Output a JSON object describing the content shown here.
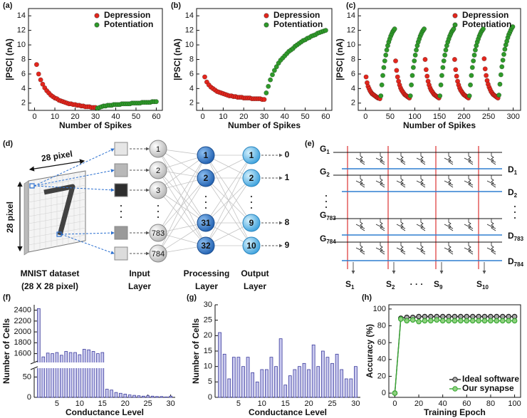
{
  "chart_data": [
    {
      "type": "scatter",
      "label": "(a)",
      "xlabel": "Number of Spikes",
      "ylabel": "|PSC| (nA)",
      "xlim": [
        -3,
        63
      ],
      "xticks": [
        0,
        10,
        20,
        30,
        40,
        50,
        60
      ],
      "ylim": [
        1,
        15
      ],
      "yticks": [
        2,
        4,
        6,
        8,
        10,
        12,
        14
      ],
      "legend": "upper right",
      "series": [
        {
          "name": "Depression",
          "color": "#e3261d",
          "x": [
            1,
            2,
            3,
            4,
            5,
            6,
            7,
            8,
            9,
            10,
            11,
            12,
            13,
            14,
            15,
            16,
            17,
            18,
            19,
            20,
            21,
            22,
            23,
            24,
            25,
            26,
            27,
            28,
            29,
            30
          ],
          "values": [
            7.3,
            6.0,
            5.2,
            4.6,
            4.1,
            3.7,
            3.4,
            3.1,
            2.9,
            2.7,
            2.6,
            2.4,
            2.3,
            2.2,
            2.1,
            2.0,
            1.9,
            1.9,
            1.8,
            1.8,
            1.7,
            1.7,
            1.6,
            1.6,
            1.5,
            1.5,
            1.5,
            1.4,
            1.4,
            1.4
          ]
        },
        {
          "name": "Potentiation",
          "color": "#2f9a2a",
          "x": [
            31,
            32,
            33,
            34,
            35,
            36,
            37,
            38,
            39,
            40,
            41,
            42,
            43,
            44,
            45,
            46,
            47,
            48,
            49,
            50,
            51,
            52,
            53,
            54,
            55,
            56,
            57,
            58,
            59,
            60
          ],
          "values": [
            1.3,
            1.4,
            1.5,
            1.6,
            1.6,
            1.7,
            1.7,
            1.7,
            1.8,
            1.8,
            1.8,
            1.8,
            1.9,
            1.9,
            1.9,
            1.9,
            1.9,
            2.0,
            2.0,
            2.0,
            2.0,
            2.0,
            2.1,
            2.1,
            2.1,
            2.1,
            2.1,
            2.2,
            2.2,
            2.2
          ]
        }
      ]
    },
    {
      "type": "scatter",
      "label": "(b)",
      "xlabel": "Number of Spikes",
      "ylabel": "|PSC| (nA)",
      "xlim": [
        -3,
        63
      ],
      "xticks": [
        0,
        10,
        20,
        30,
        40,
        50,
        60
      ],
      "ylim": [
        1,
        15
      ],
      "yticks": [
        2,
        4,
        6,
        8,
        10,
        12,
        14
      ],
      "legend": "upper right",
      "series": [
        {
          "name": "Depression",
          "color": "#e3261d",
          "x": [
            1,
            2,
            3,
            4,
            5,
            6,
            7,
            8,
            9,
            10,
            11,
            12,
            13,
            14,
            15,
            16,
            17,
            18,
            19,
            20,
            21,
            22,
            23,
            24,
            25,
            26,
            27,
            28,
            29,
            30
          ],
          "values": [
            5.6,
            4.9,
            4.5,
            4.2,
            4.0,
            3.8,
            3.6,
            3.5,
            3.4,
            3.3,
            3.2,
            3.1,
            3.0,
            3.0,
            2.9,
            2.9,
            2.8,
            2.8,
            2.8,
            2.7,
            2.7,
            2.7,
            2.7,
            2.6,
            2.6,
            2.6,
            2.6,
            2.6,
            2.5,
            2.5
          ]
        },
        {
          "name": "Potentiation",
          "color": "#2f9a2a",
          "x": [
            31,
            32,
            33,
            34,
            35,
            36,
            37,
            38,
            39,
            40,
            41,
            42,
            43,
            44,
            45,
            46,
            47,
            48,
            49,
            50,
            51,
            52,
            53,
            54,
            55,
            56,
            57,
            58,
            59,
            60
          ],
          "values": [
            3.4,
            4.3,
            5.2,
            5.9,
            6.5,
            7.0,
            7.5,
            7.9,
            8.2,
            8.5,
            8.8,
            9.1,
            9.3,
            9.5,
            9.8,
            10.0,
            10.2,
            10.4,
            10.6,
            10.7,
            10.9,
            11.0,
            11.2,
            11.3,
            11.4,
            11.6,
            11.7,
            11.8,
            11.9,
            12.0
          ]
        }
      ]
    },
    {
      "type": "scatter",
      "label": "(c)",
      "xlabel": "Number of Spikes",
      "ylabel": "|PSC| (nA)",
      "xlim": [
        -15,
        315
      ],
      "xticks": [
        0,
        50,
        100,
        150,
        200,
        250,
        300
      ],
      "ylim": [
        1,
        15
      ],
      "yticks": [
        2,
        4,
        6,
        8,
        10,
        12,
        14
      ],
      "legend": "upper right",
      "series": [
        {
          "name": "Depression",
          "color": "#e3261d",
          "x": [
            1,
            3,
            5,
            7,
            9,
            11,
            13,
            15,
            17,
            19,
            21,
            23,
            25,
            27,
            29,
            61,
            63,
            65,
            67,
            69,
            71,
            73,
            75,
            77,
            79,
            81,
            83,
            85,
            87,
            89,
            121,
            123,
            125,
            127,
            129,
            131,
            133,
            135,
            137,
            139,
            141,
            143,
            145,
            147,
            149,
            181,
            183,
            185,
            187,
            189,
            191,
            193,
            195,
            197,
            199,
            201,
            203,
            205,
            207,
            209,
            241,
            243,
            245,
            247,
            249,
            251,
            253,
            255,
            257,
            259,
            261,
            263,
            265,
            267,
            269
          ],
          "values": [
            5.6,
            4.8,
            4.3,
            4.0,
            3.7,
            3.5,
            3.3,
            3.2,
            3.1,
            3.0,
            2.9,
            2.8,
            2.7,
            2.7,
            2.6,
            7.8,
            6.5,
            5.6,
            5.0,
            4.5,
            4.1,
            3.8,
            3.6,
            3.4,
            3.2,
            3.1,
            3.0,
            2.9,
            2.8,
            2.7,
            8.0,
            6.6,
            5.7,
            5.0,
            4.5,
            4.1,
            3.8,
            3.6,
            3.4,
            3.2,
            3.1,
            3.0,
            2.9,
            2.8,
            2.7,
            8.0,
            6.6,
            5.7,
            5.0,
            4.5,
            4.1,
            3.8,
            3.6,
            3.4,
            3.2,
            3.1,
            3.0,
            2.9,
            2.8,
            2.7,
            8.1,
            6.7,
            5.8,
            5.1,
            4.6,
            4.2,
            3.9,
            3.6,
            3.4,
            3.2,
            3.1,
            3.0,
            2.9,
            2.8,
            2.7
          ]
        },
        {
          "name": "Potentiation",
          "color": "#2f9a2a",
          "x": [
            31,
            33,
            35,
            37,
            39,
            41,
            43,
            45,
            47,
            49,
            51,
            53,
            55,
            57,
            59,
            91,
            93,
            95,
            97,
            99,
            101,
            103,
            105,
            107,
            109,
            111,
            113,
            115,
            117,
            119,
            151,
            153,
            155,
            157,
            159,
            161,
            163,
            165,
            167,
            169,
            171,
            173,
            175,
            177,
            179,
            211,
            213,
            215,
            217,
            219,
            221,
            223,
            225,
            227,
            229,
            231,
            233,
            235,
            237,
            239,
            271,
            273,
            275,
            277,
            279,
            281,
            283,
            285,
            287,
            289,
            291,
            293,
            295,
            297,
            299
          ],
          "values": [
            3.0,
            4.5,
            5.8,
            6.9,
            7.8,
            8.6,
            9.3,
            9.9,
            10.4,
            10.8,
            11.2,
            11.5,
            11.8,
            12.0,
            12.2,
            3.0,
            4.5,
            5.8,
            6.9,
            7.8,
            8.6,
            9.3,
            9.9,
            10.4,
            10.8,
            11.2,
            11.5,
            11.8,
            12.0,
            12.2,
            3.0,
            4.5,
            5.8,
            6.9,
            7.8,
            8.6,
            9.3,
            9.9,
            10.4,
            10.8,
            11.2,
            11.5,
            11.8,
            12.0,
            12.2,
            3.0,
            4.5,
            5.8,
            6.9,
            7.8,
            8.6,
            9.3,
            9.9,
            10.4,
            10.8,
            11.2,
            11.5,
            11.8,
            12.0,
            12.2,
            3.1,
            4.6,
            5.9,
            7.0,
            7.9,
            8.7,
            9.4,
            10.0,
            10.5,
            11.0,
            11.4,
            11.7,
            12.0,
            12.3,
            12.5
          ]
        }
      ]
    },
    {
      "type": "bar",
      "label": "(f)",
      "xlabel": "Conductance Level",
      "ylabel": "Number of Cells",
      "color": "#c9c9ef",
      "x": [
        1,
        2,
        3,
        4,
        5,
        6,
        7,
        8,
        9,
        10,
        11,
        12,
        13,
        14,
        15,
        16,
        17,
        18,
        19,
        20,
        21,
        22,
        23,
        24,
        25,
        26,
        27,
        28,
        29,
        30
      ],
      "values": [
        2430,
        1540,
        1610,
        1600,
        1620,
        1570,
        1640,
        1620,
        1620,
        1580,
        1680,
        1670,
        1640,
        1600,
        1620,
        20,
        18,
        12,
        10,
        8,
        6,
        5,
        4,
        3,
        4,
        3,
        2,
        2,
        1,
        3
      ],
      "xlim": [
        0,
        31
      ],
      "xticks": [
        5,
        10,
        15,
        20,
        25,
        30
      ],
      "ylim": [
        0,
        2500
      ],
      "ybreak": [
        70,
        1450
      ],
      "yticks": [
        0,
        50,
        1600,
        1800,
        2000,
        2200,
        2400
      ]
    },
    {
      "type": "bar",
      "label": "(g)",
      "xlabel": "Conductance Level",
      "ylabel": "Number of Cells",
      "color": "#c9c9ef",
      "x": [
        1,
        2,
        3,
        4,
        5,
        6,
        7,
        8,
        9,
        10,
        11,
        12,
        13,
        14,
        15,
        16,
        17,
        18,
        19,
        20,
        21,
        22,
        23,
        24,
        25,
        26,
        27,
        28,
        29,
        30
      ],
      "values": [
        21,
        14,
        6,
        13,
        13,
        10,
        13,
        8,
        5,
        9,
        9,
        13,
        10,
        19,
        4,
        7,
        9,
        10,
        11,
        9,
        17,
        10,
        15,
        13,
        11,
        14,
        9,
        6,
        6,
        10
      ],
      "xlim": [
        0,
        31
      ],
      "xticks": [
        5,
        10,
        15,
        20,
        25,
        30
      ],
      "ylim": [
        0,
        30
      ],
      "yticks": [
        0,
        5,
        10,
        15,
        20,
        25,
        30
      ]
    },
    {
      "type": "line",
      "label": "(h)",
      "xlabel": "Training Epoch",
      "ylabel": "Accuracy (%)",
      "x": [
        0,
        5,
        10,
        15,
        20,
        25,
        30,
        35,
        40,
        45,
        50,
        55,
        60,
        65,
        70,
        75,
        80,
        85,
        90,
        95,
        100
      ],
      "xlim": [
        -5,
        105
      ],
      "xticks": [
        0,
        20,
        40,
        60,
        80,
        100
      ],
      "ylim": [
        -5,
        105
      ],
      "yticks": [
        0,
        20,
        40,
        60,
        80,
        100
      ],
      "legend": "lower right",
      "series": [
        {
          "name": "Ideal software",
          "color": "#222222",
          "values": [
            0,
            89,
            90,
            90,
            91,
            91,
            91,
            91,
            91,
            91,
            91,
            91,
            91,
            91,
            91,
            91,
            91,
            91,
            91,
            91,
            91
          ]
        },
        {
          "name": "Our synapse",
          "color": "#3aa935",
          "values": [
            0,
            88,
            86,
            87,
            85,
            86,
            86,
            87,
            86,
            86,
            86,
            86,
            86,
            86,
            86,
            86,
            86,
            86,
            86,
            86,
            86
          ]
        }
      ]
    }
  ],
  "network": {
    "label": "(d)",
    "image_width": "28 pixel",
    "image_height": "28 pixel",
    "dataset": [
      "MNIST dataset",
      "(28 X 28 pixel)"
    ],
    "input_nodes": [
      "1",
      "2",
      "3",
      "783",
      "784"
    ],
    "processing_nodes": [
      "1",
      "2",
      "31",
      "32"
    ],
    "output_nodes": [
      "1",
      "2",
      "9",
      "10"
    ],
    "outputs": [
      "0",
      "1",
      "8",
      "9"
    ],
    "layers": [
      [
        "Input",
        "Layer"
      ],
      [
        "Processing",
        "Layer"
      ],
      [
        "Output",
        "Layer"
      ]
    ]
  },
  "crossbar": {
    "label": "(e)",
    "gates": [
      [
        "G",
        "1"
      ],
      [
        "G",
        "2"
      ],
      [
        "G",
        "783"
      ],
      [
        "G",
        "784"
      ]
    ],
    "drains": [
      [
        "D",
        "1"
      ],
      [
        "D",
        "2"
      ],
      [
        "D",
        "783"
      ],
      [
        "D",
        "784"
      ]
    ],
    "sources": [
      [
        "S",
        "1"
      ],
      [
        "S",
        "2"
      ],
      [
        "S",
        "9"
      ],
      [
        "S",
        "10"
      ]
    ],
    "ellipsis": "· · ·"
  }
}
